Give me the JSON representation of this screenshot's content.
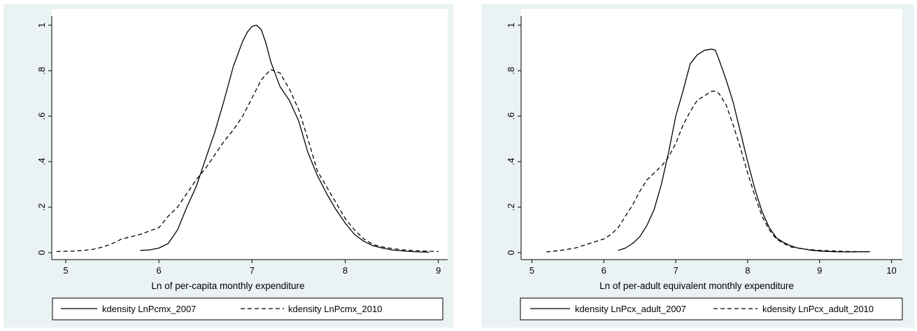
{
  "chart_data": [
    {
      "type": "line",
      "xlabel": "Ln of per-capita monthly expenditure",
      "ylabel": "",
      "xlim": [
        4.85,
        9.1
      ],
      "ylim": [
        0,
        1
      ],
      "xticks": [
        "5",
        "6",
        "7",
        "8",
        "9"
      ],
      "yticks": [
        "0",
        ".2",
        ".4",
        ".6",
        ".8",
        "1"
      ],
      "grid": false,
      "legend_position": "bottom",
      "series": [
        {
          "name": "kdensity LnPcmx_2007",
          "style": "solid",
          "x": [
            5.8,
            5.9,
            6.0,
            6.1,
            6.2,
            6.3,
            6.4,
            6.5,
            6.6,
            6.7,
            6.8,
            6.9,
            6.95,
            7.0,
            7.05,
            7.1,
            7.15,
            7.2,
            7.3,
            7.4,
            7.5,
            7.6,
            7.7,
            7.8,
            7.9,
            8.0,
            8.1,
            8.2,
            8.3,
            8.4,
            8.5,
            8.6,
            8.7,
            8.8,
            8.9
          ],
          "y": [
            0.01,
            0.012,
            0.02,
            0.04,
            0.1,
            0.2,
            0.29,
            0.41,
            0.53,
            0.67,
            0.82,
            0.93,
            0.97,
            0.995,
            1.0,
            0.98,
            0.92,
            0.84,
            0.73,
            0.67,
            0.58,
            0.44,
            0.34,
            0.26,
            0.19,
            0.13,
            0.08,
            0.05,
            0.03,
            0.02,
            0.012,
            0.008,
            0.005,
            0.003,
            0.002
          ]
        },
        {
          "name": "kdensity LnPcmx_2010",
          "style": "dashed",
          "x": [
            4.9,
            5.0,
            5.1,
            5.2,
            5.3,
            5.4,
            5.5,
            5.6,
            5.7,
            5.8,
            5.9,
            6.0,
            6.1,
            6.2,
            6.3,
            6.4,
            6.5,
            6.6,
            6.7,
            6.8,
            6.9,
            7.0,
            7.1,
            7.2,
            7.3,
            7.4,
            7.5,
            7.6,
            7.7,
            7.8,
            7.9,
            8.0,
            8.1,
            8.2,
            8.3,
            8.4,
            8.5,
            8.6,
            8.7,
            8.8,
            8.9,
            9.0
          ],
          "y": [
            0.005,
            0.006,
            0.007,
            0.01,
            0.015,
            0.025,
            0.04,
            0.06,
            0.07,
            0.08,
            0.095,
            0.11,
            0.16,
            0.2,
            0.26,
            0.32,
            0.37,
            0.43,
            0.49,
            0.54,
            0.6,
            0.68,
            0.76,
            0.805,
            0.79,
            0.72,
            0.63,
            0.5,
            0.36,
            0.29,
            0.22,
            0.15,
            0.1,
            0.06,
            0.035,
            0.025,
            0.018,
            0.013,
            0.01,
            0.008,
            0.006,
            0.005
          ]
        }
      ]
    },
    {
      "type": "line",
      "xlabel": "Ln of per-adult equivalent monthly expenditure",
      "ylabel": "",
      "xlim": [
        4.85,
        10.15
      ],
      "ylim": [
        0,
        1
      ],
      "xticks": [
        "5",
        "6",
        "7",
        "8",
        "9",
        "10"
      ],
      "yticks": [
        "0",
        ".2",
        ".4",
        ".6",
        ".8",
        "1"
      ],
      "grid": false,
      "legend_position": "bottom",
      "series": [
        {
          "name": "kdensity LnPcx_adult_2007",
          "style": "solid",
          "x": [
            6.2,
            6.3,
            6.4,
            6.5,
            6.6,
            6.7,
            6.8,
            6.9,
            7.0,
            7.1,
            7.2,
            7.3,
            7.4,
            7.5,
            7.55,
            7.6,
            7.7,
            7.8,
            7.9,
            8.0,
            8.1,
            8.2,
            8.3,
            8.4,
            8.5,
            8.6,
            8.7,
            8.8,
            8.9,
            9.0,
            9.2,
            9.4,
            9.6,
            9.7
          ],
          "y": [
            0.01,
            0.02,
            0.04,
            0.07,
            0.12,
            0.19,
            0.3,
            0.44,
            0.6,
            0.71,
            0.83,
            0.87,
            0.89,
            0.895,
            0.89,
            0.85,
            0.76,
            0.66,
            0.53,
            0.4,
            0.28,
            0.18,
            0.11,
            0.065,
            0.045,
            0.03,
            0.02,
            0.015,
            0.01,
            0.007,
            0.004,
            0.003,
            0.004,
            0.004
          ]
        },
        {
          "name": "kdensity LnPcx_adult_2010",
          "style": "dashed",
          "x": [
            5.2,
            5.4,
            5.6,
            5.8,
            6.0,
            6.1,
            6.2,
            6.3,
            6.4,
            6.5,
            6.6,
            6.7,
            6.8,
            6.9,
            7.0,
            7.1,
            7.2,
            7.3,
            7.4,
            7.5,
            7.55,
            7.6,
            7.7,
            7.8,
            7.9,
            8.0,
            8.1,
            8.2,
            8.3,
            8.4,
            8.5,
            8.6,
            8.8,
            9.0,
            9.2,
            9.4,
            9.6
          ],
          "y": [
            0.003,
            0.01,
            0.02,
            0.04,
            0.06,
            0.08,
            0.11,
            0.16,
            0.21,
            0.27,
            0.32,
            0.35,
            0.38,
            0.42,
            0.48,
            0.56,
            0.62,
            0.67,
            0.69,
            0.71,
            0.71,
            0.7,
            0.65,
            0.56,
            0.46,
            0.35,
            0.25,
            0.16,
            0.1,
            0.06,
            0.04,
            0.025,
            0.015,
            0.01,
            0.007,
            0.005,
            0.004
          ]
        }
      ]
    }
  ]
}
